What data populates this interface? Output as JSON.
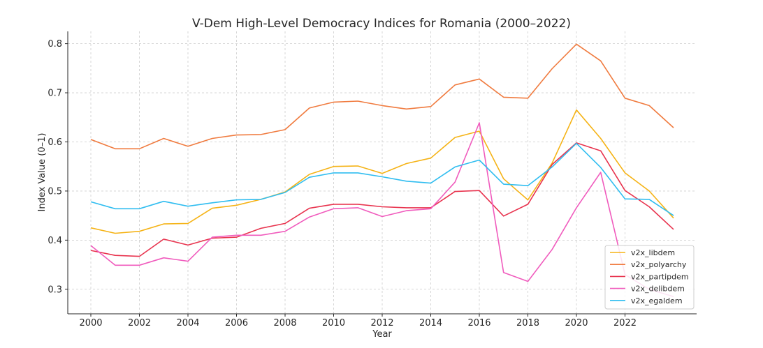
{
  "chart_data": {
    "type": "line",
    "title": "V-Dem High-Level Democracy Indices for Romania (2000–2022)",
    "xlabel": "Year",
    "ylabel": "Index Value (0–1)",
    "xlim": [
      1999.05,
      2024.95
    ],
    "ylim": [
      0.25,
      0.825
    ],
    "xticks": [
      2000,
      2002,
      2004,
      2006,
      2008,
      2010,
      2012,
      2014,
      2016,
      2018,
      2020,
      2022
    ],
    "yticks": [
      0.3,
      0.4,
      0.5,
      0.6,
      0.7,
      0.8
    ],
    "xtick_labels": [
      "2000",
      "2002",
      "2004",
      "2006",
      "2008",
      "2010",
      "2012",
      "2014",
      "2016",
      "2018",
      "2020",
      "2022"
    ],
    "ytick_labels": [
      "0.3",
      "0.4",
      "0.5",
      "0.6",
      "0.7",
      "0.8"
    ],
    "grid": true,
    "legend_position": "lower-right",
    "x": [
      2000,
      2001,
      2002,
      2003,
      2004,
      2005,
      2006,
      2007,
      2008,
      2009,
      2010,
      2011,
      2012,
      2013,
      2014,
      2015,
      2016,
      2017,
      2018,
      2019,
      2020,
      2021,
      2022,
      2023,
      2024
    ],
    "series": [
      {
        "name": "v2x_libdem",
        "color": "#f5b316",
        "values": [
          0.425,
          0.414,
          0.418,
          0.433,
          0.434,
          0.465,
          0.471,
          0.483,
          0.498,
          0.534,
          0.55,
          0.551,
          0.536,
          0.556,
          0.567,
          0.609,
          0.622,
          0.525,
          0.482,
          0.557,
          0.665,
          0.607,
          0.537,
          0.5,
          0.445
        ]
      },
      {
        "name": "v2x_polyarchy",
        "color": "#f07b3f",
        "values": [
          0.605,
          0.586,
          0.586,
          0.607,
          0.591,
          0.607,
          0.614,
          0.615,
          0.625,
          0.669,
          0.681,
          0.683,
          0.674,
          0.667,
          0.672,
          0.716,
          0.728,
          0.691,
          0.689,
          0.749,
          0.799,
          0.765,
          0.689,
          0.674,
          0.629
        ]
      },
      {
        "name": "v2x_partipdem",
        "color": "#e8334e",
        "values": [
          0.379,
          0.369,
          0.367,
          0.402,
          0.39,
          0.404,
          0.406,
          0.424,
          0.434,
          0.465,
          0.473,
          0.473,
          0.468,
          0.466,
          0.466,
          0.499,
          0.501,
          0.449,
          0.473,
          0.554,
          0.598,
          0.582,
          0.501,
          0.468,
          0.422
        ]
      },
      {
        "name": "v2x_delibdem",
        "color": "#f05bbd",
        "values": [
          0.389,
          0.349,
          0.349,
          0.364,
          0.357,
          0.406,
          0.41,
          0.41,
          0.418,
          0.447,
          0.464,
          0.466,
          0.448,
          0.46,
          0.464,
          0.518,
          0.639,
          0.334,
          0.316,
          0.381,
          0.466,
          0.538,
          0.33,
          0.3,
          0.285
        ]
      },
      {
        "name": "v2x_egaldem",
        "color": "#30bdf0",
        "values": [
          0.478,
          0.464,
          0.464,
          0.479,
          0.469,
          0.476,
          0.482,
          0.483,
          0.497,
          0.528,
          0.537,
          0.537,
          0.529,
          0.52,
          0.516,
          0.549,
          0.563,
          0.514,
          0.511,
          0.549,
          0.597,
          0.548,
          0.484,
          0.483,
          0.45
        ]
      }
    ]
  }
}
